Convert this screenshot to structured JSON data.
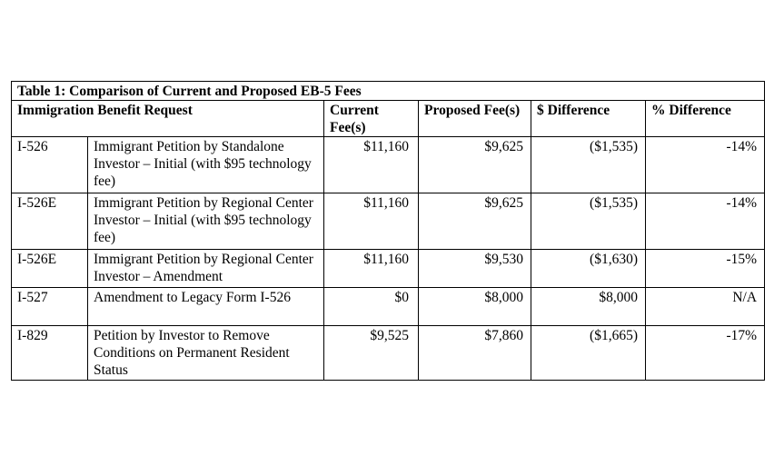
{
  "table": {
    "caption": "Table 1: Comparison of Current and Proposed EB-5 Fees",
    "headers": {
      "request": "Immigration Benefit Request",
      "current": "Current Fee(s)",
      "proposed": "Proposed Fee(s)",
      "dollar_diff": "$ Difference",
      "pct_diff": "% Difference"
    },
    "rows": [
      {
        "form": "I-526",
        "description": "Immigrant Petition by Standalone Investor – Initial (with $95 technology fee)",
        "current": "$11,160",
        "proposed": "$9,625",
        "dollar_diff": "($1,535)",
        "pct_diff": "-14%"
      },
      {
        "form": "I-526E",
        "description": "Immigrant Petition by Regional Center Investor – Initial (with $95 technology fee)",
        "current": "$11,160",
        "proposed": "$9,625",
        "dollar_diff": "($1,535)",
        "pct_diff": "-14%"
      },
      {
        "form": "I-526E",
        "description": "Immigrant Petition by Regional Center Investor – Amendment",
        "current": "$11,160",
        "proposed": "$9,530",
        "dollar_diff": "($1,630)",
        "pct_diff": "-15%"
      },
      {
        "form": "I-527",
        "description": "Amendment to Legacy Form I-526",
        "current": "$0",
        "proposed": "$8,000",
        "dollar_diff": "$8,000",
        "pct_diff": "N/A"
      },
      {
        "form": "I-829",
        "description": "Petition by Investor to Remove Conditions on Permanent Resident Status",
        "current": "$9,525",
        "proposed": "$7,860",
        "dollar_diff": "($1,665)",
        "pct_diff": "-17%"
      }
    ]
  }
}
